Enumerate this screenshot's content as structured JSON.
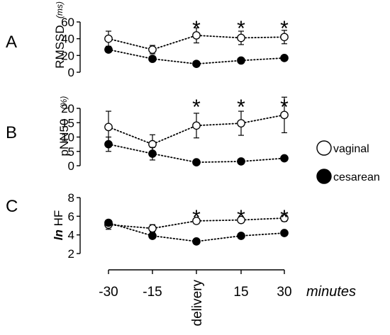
{
  "chart_data": [
    {
      "type": "line",
      "panel": "A",
      "ylabel": "RMSSD",
      "yunit": "(ms)",
      "ylim": [
        0,
        60
      ],
      "yticks": [
        0,
        20,
        40,
        60
      ],
      "categories": [
        "-30",
        "-15",
        "delivery",
        "15",
        "30"
      ],
      "significant": [
        false,
        false,
        true,
        true,
        true
      ],
      "series": [
        {
          "name": "vaginal",
          "marker": "open-circle",
          "values": [
            40,
            27,
            44,
            41,
            42
          ],
          "errors": [
            9,
            5,
            9,
            8,
            8
          ]
        },
        {
          "name": "cesarean",
          "marker": "filled-circle",
          "values": [
            27,
            16,
            10,
            14,
            17
          ],
          "errors": [
            2,
            2,
            1,
            1,
            1
          ]
        }
      ]
    },
    {
      "type": "line",
      "panel": "B",
      "ylabel": "pNN50",
      "yunit": "(%)",
      "ylim": [
        0,
        20
      ],
      "yticks": [
        0,
        5,
        10,
        15,
        20
      ],
      "categories": [
        "-30",
        "-15",
        "delivery",
        "15",
        "30"
      ],
      "significant": [
        false,
        false,
        true,
        true,
        true
      ],
      "series": [
        {
          "name": "vaginal",
          "marker": "open-circle",
          "values": [
            13.5,
            7.5,
            14,
            14.8,
            17.7
          ],
          "errors": [
            5.5,
            3.3,
            4.3,
            4.2,
            6.2
          ]
        },
        {
          "name": "cesarean",
          "marker": "filled-circle",
          "values": [
            7.5,
            4.2,
            1.2,
            1.5,
            2.6
          ],
          "errors": [
            2.5,
            2.2,
            0.2,
            0.3,
            0.5
          ]
        }
      ]
    },
    {
      "type": "line",
      "panel": "C",
      "ylabel_prefix": "ln",
      "ylabel": "HF",
      "ylim": [
        2,
        8
      ],
      "yticks": [
        2,
        4,
        6,
        8
      ],
      "categories": [
        "-30",
        "-15",
        "delivery",
        "15",
        "30"
      ],
      "significant": [
        false,
        false,
        true,
        true,
        true
      ],
      "series": [
        {
          "name": "vaginal",
          "marker": "open-circle",
          "values": [
            5.1,
            4.7,
            5.5,
            5.6,
            5.8
          ],
          "errors": [
            0.5,
            0.4,
            0.3,
            0.3,
            0.35
          ]
        },
        {
          "name": "cesarean",
          "marker": "filled-circle",
          "values": [
            5.3,
            3.9,
            3.3,
            3.9,
            4.2
          ],
          "errors": [
            0.3,
            0.25,
            0.15,
            0.25,
            0.25
          ]
        }
      ]
    }
  ],
  "figure": {
    "significance_marker": "*",
    "x_unit_label": "minutes",
    "legend": [
      {
        "label": "vaginal",
        "marker": "open-circle"
      },
      {
        "label": "cesarean",
        "marker": "filled-circle"
      }
    ],
    "colors": {
      "ink": "#000000",
      "open_fill": "#ffffff"
    }
  }
}
